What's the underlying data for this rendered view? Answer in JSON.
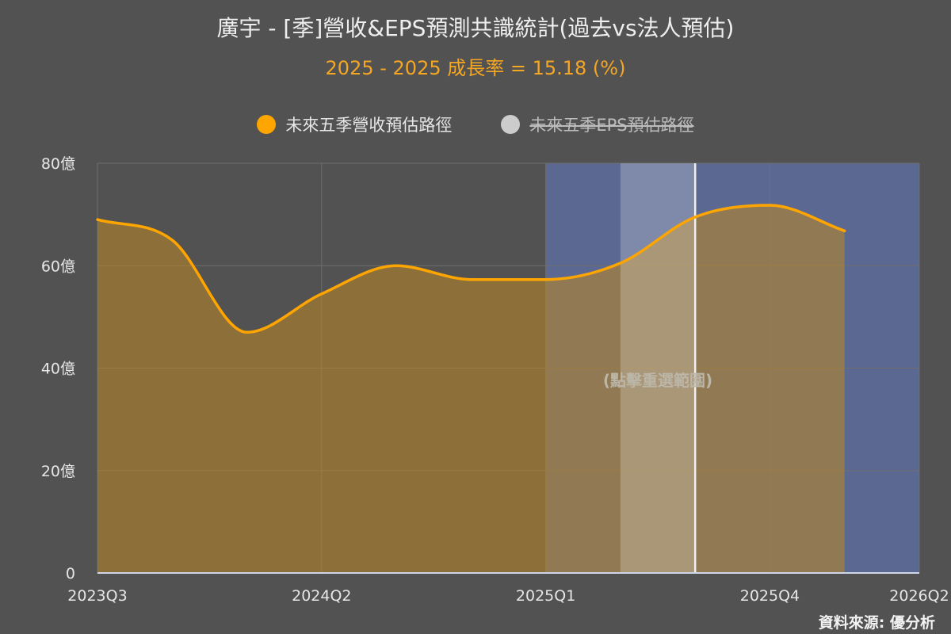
{
  "header": {
    "title": "廣宇 - [季]營收&EPS預測共識統計(過去vs法人預估)",
    "subtitle": "2025 - 2025 成長率 = 15.18 (%)"
  },
  "legend": [
    {
      "label": "未來五季營收預估路徑",
      "color": "#FFA500",
      "hidden": false
    },
    {
      "label": "未來五季EPS預估路徑",
      "color": "#CCCCCC",
      "hidden": true
    }
  ],
  "source": "資料來源: 優分析",
  "chart_data": {
    "type": "area",
    "title": "廣宇 - [季]營收&EPS預測共識統計(過去vs法人預估)",
    "subtitle": "2025 - 2025 成長率 = 15.18 (%)",
    "x_ticks": [
      "2023Q3",
      "2024Q2",
      "2025Q1",
      "2025Q4",
      "2026Q2"
    ],
    "y_ticks": [
      "0",
      "20億",
      "40億",
      "60億",
      "80億"
    ],
    "ylim": [
      0,
      80
    ],
    "y_unit": "億",
    "x_range_quarters": [
      "2023Q3",
      "2026Q2"
    ],
    "series": [
      {
        "name": "未來五季營收預估路徑",
        "color": "#FFA500",
        "x": [
          "2023Q3",
          "2023Q4",
          "2024Q1",
          "2024Q2",
          "2024Q3",
          "2024Q4",
          "2025Q1",
          "2025Q2",
          "2025Q3",
          "2025Q4",
          "2026Q1"
        ],
        "values": [
          69,
          65,
          47,
          54.5,
          60,
          57.3,
          57.3,
          60.5,
          69.5,
          71.8,
          66.8
        ]
      }
    ],
    "forecast_region": {
      "from": "2025Q1",
      "to": "2026Q2",
      "color": "#5c6a96"
    },
    "selection_band": {
      "from": "2025Q2",
      "to": "2025Q3",
      "marker": "2025Q3"
    },
    "annotation": "(點擊重選範圍)",
    "grid": true,
    "legend_position": "top"
  }
}
